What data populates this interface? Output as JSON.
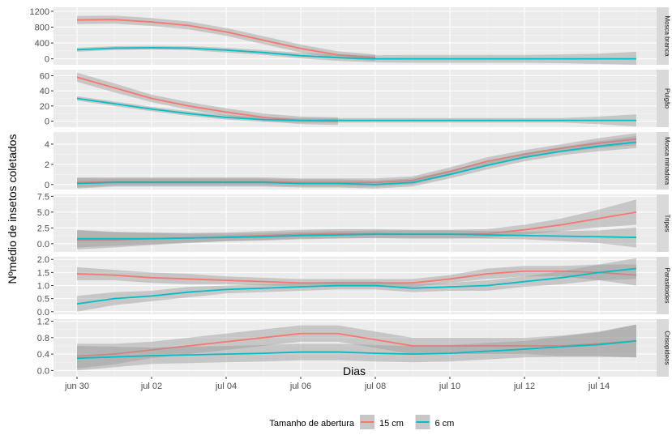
{
  "chart_data": {
    "type": "line",
    "xlabel": "Dias",
    "ylabel": "Nºmédio de insetos coletados",
    "x_ticks": [
      "jun 30",
      "jul 02",
      "jul 04",
      "jul 06",
      "jul 08",
      "jul 10",
      "jul 12",
      "jul 14"
    ],
    "xlim": [
      "2019-06-30",
      "2019-07-15"
    ],
    "x_tick_dates": [
      "2019-06-30",
      "2019-07-02",
      "2019-07-04",
      "2019-07-06",
      "2019-07-08",
      "2019-07-10",
      "2019-07-12",
      "2019-07-14"
    ],
    "x": [
      "2019-06-30",
      "2019-07-01",
      "2019-07-02",
      "2019-07-03",
      "2019-07-04",
      "2019-07-05",
      "2019-07-06",
      "2019-07-07",
      "2019-07-08",
      "2019-07-09",
      "2019-07-10",
      "2019-07-11",
      "2019-07-12",
      "2019-07-13",
      "2019-07-14",
      "2019-07-15"
    ],
    "legend": {
      "title": "Tamanho de abertura",
      "position": "bottom",
      "entries": [
        {
          "label": "15 cm",
          "color": "#f8766d"
        },
        {
          "label": "6 cm",
          "color": "#00bfc4"
        }
      ]
    },
    "grid": true,
    "panel_background": "#ebebeb",
    "band_color": "#999999",
    "facets": [
      {
        "strip": "Mosca branca",
        "ylim": [
          -150,
          1300
        ],
        "yticks": [
          0,
          400,
          800,
          1200
        ],
        "tick_labels": [
          "0",
          "400",
          "800",
          "1200"
        ],
        "series": [
          {
            "legend_label": "15 cm",
            "color": "#f8766d",
            "x_end": "2019-07-08",
            "values": [
              980,
              990,
              930,
              840,
              680,
              470,
              260,
              100,
              30,
              null,
              null,
              null,
              null,
              null,
              null,
              null
            ],
            "ci": [
              100,
              100,
              100,
              100,
              100,
              100,
              100,
              90,
              80,
              null,
              null,
              null,
              null,
              null,
              null,
              null
            ]
          },
          {
            "legend_label": "6 cm",
            "color": "#00bfc4",
            "values": [
              230,
              270,
              280,
              270,
              220,
              160,
              80,
              30,
              0,
              0,
              0,
              0,
              0,
              0,
              0,
              0
            ],
            "ci": [
              50,
              50,
              50,
              50,
              60,
              60,
              70,
              80,
              90,
              100,
              100,
              100,
              100,
              110,
              130,
              180
            ]
          }
        ]
      },
      {
        "strip": "Pulgão",
        "ylim": [
          -8,
          68
        ],
        "yticks": [
          0,
          20,
          40,
          60
        ],
        "tick_labels": [
          "0",
          "20",
          "40",
          "60"
        ],
        "series": [
          {
            "legend_label": "15 cm",
            "color": "#f8766d",
            "x_end": "2019-07-07",
            "values": [
              58,
              44,
              30,
              20,
              12,
              5,
              1,
              0,
              null,
              null,
              null,
              null,
              null,
              null,
              null,
              null
            ],
            "ci": [
              6,
              6,
              5,
              5,
              5,
              5,
              5,
              5,
              null,
              null,
              null,
              null,
              null,
              null,
              null,
              null
            ]
          },
          {
            "legend_label": "6 cm",
            "color": "#00bfc4",
            "values": [
              30,
              23,
              16,
              10,
              5,
              2,
              1,
              1,
              1,
              1,
              1,
              1,
              1,
              1,
              1,
              1
            ],
            "ci": [
              3,
              3,
              3,
              3,
              3,
              3,
              3,
              3,
              3,
              3,
              3,
              3,
              3,
              3,
              5,
              8
            ]
          }
        ]
      },
      {
        "strip": "Mosca minadora",
        "ylim": [
          -0.5,
          5.2
        ],
        "yticks": [
          0,
          2,
          4
        ],
        "tick_labels": [
          "0",
          "2",
          "4"
        ],
        "series": [
          {
            "legend_label": "15 cm",
            "color": "#f8766d",
            "values": [
              0.2,
              0.3,
              0.3,
              0.3,
              0.3,
              0.3,
              0.2,
              0.2,
              0.2,
              0.4,
              1.3,
              2.3,
              3.0,
              3.6,
              4.1,
              4.5
            ],
            "ci": [
              0.5,
              0.4,
              0.4,
              0.4,
              0.4,
              0.4,
              0.4,
              0.4,
              0.4,
              0.4,
              0.4,
              0.4,
              0.4,
              0.4,
              0.5,
              0.6
            ]
          },
          {
            "legend_label": "6 cm",
            "color": "#00bfc4",
            "values": [
              0.1,
              0.2,
              0.2,
              0.2,
              0.2,
              0.2,
              0.1,
              0.1,
              0.0,
              0.2,
              1.0,
              1.9,
              2.7,
              3.3,
              3.8,
              4.2
            ],
            "ci": [
              0.5,
              0.4,
              0.4,
              0.4,
              0.4,
              0.4,
              0.4,
              0.4,
              0.4,
              0.4,
              0.4,
              0.4,
              0.4,
              0.4,
              0.5,
              0.6
            ]
          }
        ]
      },
      {
        "strip": "Tripes",
        "ylim": [
          -1.3,
          7.8
        ],
        "yticks": [
          0.0,
          2.5,
          5.0,
          7.5
        ],
        "tick_labels": [
          "0.0",
          "2.5",
          "5.0",
          "7.5"
        ],
        "series": [
          {
            "legend_label": "15 cm",
            "color": "#f8766d",
            "values": [
              0.6,
              0.6,
              0.8,
              0.9,
              1.1,
              1.3,
              1.5,
              1.6,
              1.6,
              1.5,
              1.5,
              1.6,
              2.2,
              3.0,
              4.0,
              5.0
            ],
            "ci": [
              1.5,
              1.2,
              1.0,
              0.8,
              0.7,
              0.7,
              0.7,
              0.7,
              0.7,
              0.7,
              0.7,
              0.7,
              0.8,
              1.0,
              1.4,
              2.0
            ]
          },
          {
            "legend_label": "6 cm",
            "color": "#00bfc4",
            "values": [
              0.8,
              0.8,
              0.8,
              0.9,
              1.0,
              1.1,
              1.3,
              1.4,
              1.5,
              1.5,
              1.5,
              1.4,
              1.3,
              1.2,
              1.1,
              1.0
            ],
            "ci": [
              1.4,
              1.1,
              0.9,
              0.7,
              0.6,
              0.6,
              0.6,
              0.6,
              0.6,
              0.6,
              0.6,
              0.6,
              0.6,
              0.8,
              1.0,
              1.6
            ]
          }
        ]
      },
      {
        "strip": "Parasitoides",
        "ylim": [
          -0.1,
          2.1
        ],
        "yticks": [
          0.0,
          0.5,
          1.0,
          1.5,
          2.0
        ],
        "tick_labels": [
          "0.0",
          "0.5",
          "1.0",
          "1.5",
          "2.0"
        ],
        "series": [
          {
            "legend_label": "15 cm",
            "color": "#f8766d",
            "values": [
              1.45,
              1.4,
              1.3,
              1.25,
              1.2,
              1.15,
              1.1,
              1.1,
              1.1,
              1.1,
              1.25,
              1.45,
              1.55,
              1.55,
              1.5,
              1.4
            ],
            "ci": [
              0.25,
              0.2,
              0.2,
              0.2,
              0.15,
              0.15,
              0.15,
              0.15,
              0.15,
              0.15,
              0.15,
              0.2,
              0.2,
              0.2,
              0.3,
              0.4
            ]
          },
          {
            "legend_label": "6 cm",
            "color": "#00bfc4",
            "values": [
              0.3,
              0.5,
              0.6,
              0.75,
              0.85,
              0.9,
              0.95,
              1.0,
              1.0,
              0.9,
              0.95,
              1.0,
              1.15,
              1.3,
              1.5,
              1.65
            ],
            "ci": [
              0.3,
              0.25,
              0.2,
              0.2,
              0.15,
              0.15,
              0.15,
              0.15,
              0.15,
              0.15,
              0.15,
              0.2,
              0.2,
              0.25,
              0.3,
              0.4
            ]
          }
        ]
      },
      {
        "strip": "Crisopideos",
        "ylim": [
          -0.15,
          1.25
        ],
        "yticks": [
          0.0,
          0.4,
          0.8,
          1.2
        ],
        "tick_labels": [
          "0.0",
          "0.4",
          "0.8",
          "1.2"
        ],
        "series": [
          {
            "legend_label": "15 cm",
            "color": "#f8766d",
            "values": [
              0.35,
              0.4,
              0.5,
              0.6,
              0.7,
              0.8,
              0.9,
              0.9,
              0.75,
              0.6,
              0.6,
              0.6,
              0.6,
              0.6,
              0.65,
              0.72
            ],
            "ci": [
              0.3,
              0.25,
              0.2,
              0.2,
              0.2,
              0.2,
              0.2,
              0.2,
              0.2,
              0.2,
              0.2,
              0.2,
              0.2,
              0.25,
              0.3,
              0.4
            ]
          },
          {
            "legend_label": "6 cm",
            "color": "#00bfc4",
            "values": [
              0.3,
              0.33,
              0.36,
              0.38,
              0.4,
              0.42,
              0.45,
              0.45,
              0.42,
              0.4,
              0.42,
              0.47,
              0.52,
              0.58,
              0.63,
              0.72
            ],
            "ci": [
              0.3,
              0.25,
              0.2,
              0.2,
              0.2,
              0.2,
              0.2,
              0.2,
              0.2,
              0.2,
              0.2,
              0.2,
              0.2,
              0.25,
              0.3,
              0.4
            ]
          }
        ]
      }
    ]
  }
}
